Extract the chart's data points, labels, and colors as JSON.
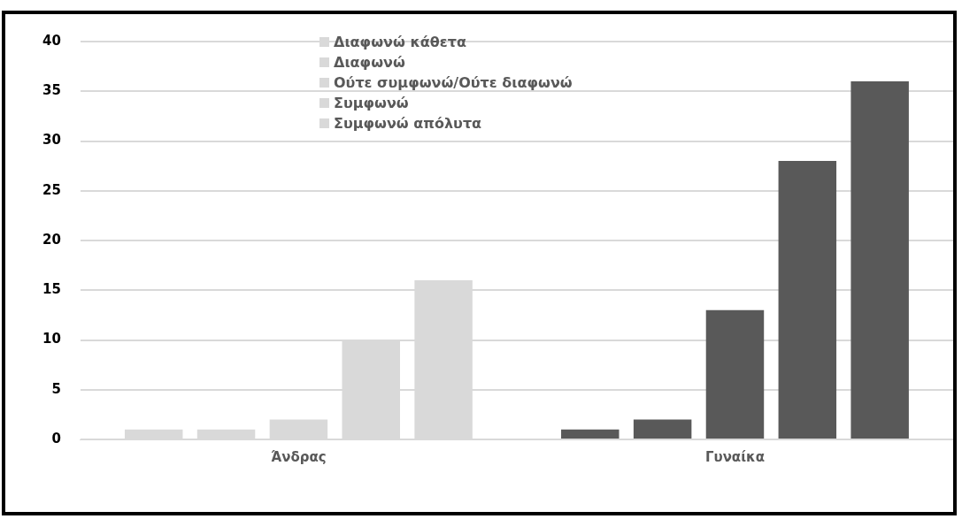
{
  "chart_data": {
    "type": "bar",
    "categories": [
      "Άνδρας",
      "Γυναίκα"
    ],
    "series": [
      {
        "name": "Διαφωνώ κάθετα",
        "color": "#d9d9d9",
        "colors": [
          "#d9d9d9",
          "#595959"
        ],
        "values": [
          1,
          1
        ]
      },
      {
        "name": "Διαφωνώ",
        "color": "#d9d9d9",
        "colors": [
          "#d9d9d9",
          "#595959"
        ],
        "values": [
          1,
          2
        ]
      },
      {
        "name": "Ούτε συμφωνώ/Ούτε διαφωνώ",
        "color": "#d9d9d9",
        "colors": [
          "#d9d9d9",
          "#595959"
        ],
        "values": [
          2,
          13
        ]
      },
      {
        "name": "Συμφωνώ",
        "color": "#d9d9d9",
        "colors": [
          "#d9d9d9",
          "#595959"
        ],
        "values": [
          10,
          28
        ]
      },
      {
        "name": "Συμφωνώ απόλυτα",
        "color": "#d9d9d9",
        "colors": [
          "#d9d9d9",
          "#595959"
        ],
        "values": [
          16,
          36
        ]
      }
    ],
    "ylim": [
      0,
      40
    ],
    "yticks": [
      0,
      5,
      10,
      15,
      20,
      25,
      30,
      35,
      40
    ],
    "grid": "y",
    "legend": "top"
  }
}
